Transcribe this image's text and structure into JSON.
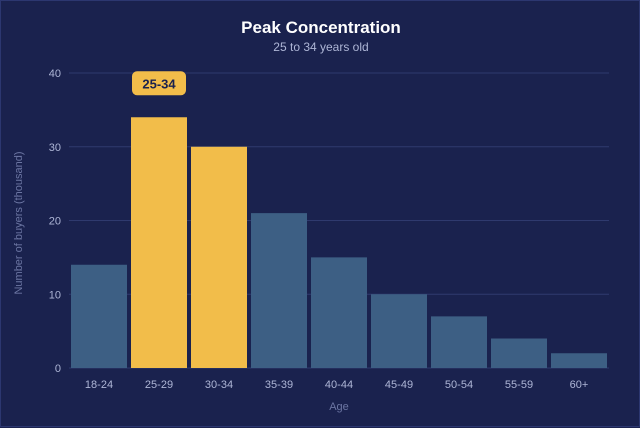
{
  "chart_data": {
    "type": "bar",
    "title": "Peak Concentration",
    "subtitle": "25 to 34 years old",
    "xlabel": "Age",
    "ylabel": "Number of buyers (thousand)",
    "categories": [
      "18-24",
      "25-29",
      "30-34",
      "35-39",
      "40-44",
      "45-49",
      "50-54",
      "55-59",
      "60+"
    ],
    "values": [
      14,
      34,
      30,
      21,
      15,
      10,
      7,
      4,
      2
    ],
    "highlighted": [
      "25-29",
      "30-34"
    ],
    "ylim": [
      0,
      40
    ],
    "yticks": [
      0,
      10,
      20,
      30,
      40
    ],
    "grid": true,
    "annotation": {
      "text": "25-34",
      "category": "25-29"
    },
    "colors": {
      "background": "#1a224e",
      "bar": "#3d5f84",
      "highlight": "#f2bd4a",
      "grid": "#2f3a6e"
    }
  }
}
